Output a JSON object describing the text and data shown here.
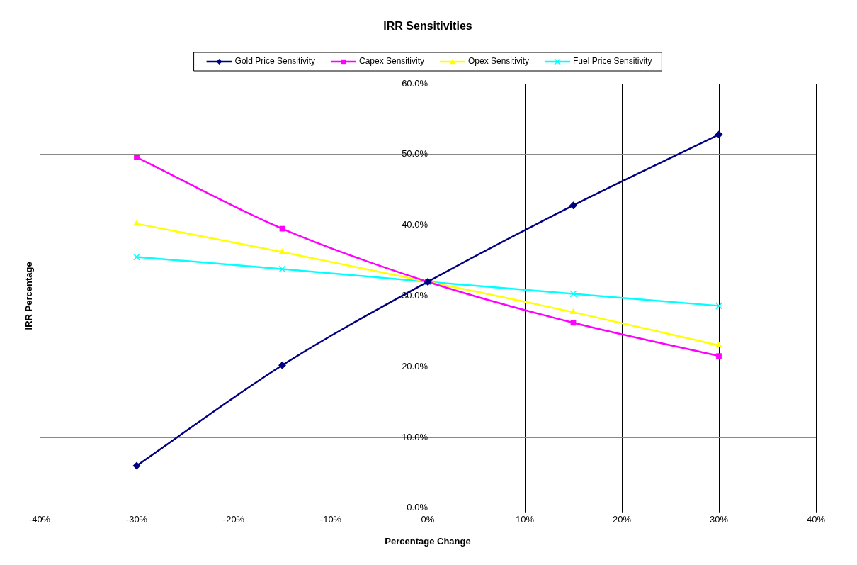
{
  "chart_data": {
    "type": "line",
    "title": "IRR Sensitivities",
    "xlabel": "Percentage Change",
    "ylabel": "IRR Percentage",
    "x": [
      -30,
      -15,
      0,
      15,
      30
    ],
    "series": [
      {
        "name": "Gold Price Sensitivity",
        "color": "#000080",
        "marker": "diamond",
        "values": [
          6.0,
          20.2,
          32.0,
          42.8,
          52.8
        ]
      },
      {
        "name": "Capex Sensitivity",
        "color": "#ff00ff",
        "marker": "square",
        "values": [
          49.6,
          39.5,
          32.0,
          26.2,
          21.5
        ]
      },
      {
        "name": "Opex Sensitivity",
        "color": "#ffff00",
        "marker": "triangle",
        "values": [
          40.2,
          36.2,
          32.0,
          27.7,
          23.0
        ]
      },
      {
        "name": "Fuel Price Sensitivity",
        "color": "#00ffff",
        "marker": "cross",
        "values": [
          35.5,
          33.8,
          32.0,
          30.3,
          28.6
        ]
      }
    ],
    "xlim": [
      -40,
      40
    ],
    "xticks": [
      {
        "value": -40,
        "label": "-40%"
      },
      {
        "value": -30,
        "label": "-30%"
      },
      {
        "value": -20,
        "label": "-20%"
      },
      {
        "value": -10,
        "label": "-10%"
      },
      {
        "value": 0,
        "label": "0%"
      },
      {
        "value": 10,
        "label": "10%"
      },
      {
        "value": 20,
        "label": "20%"
      },
      {
        "value": 30,
        "label": "30%"
      },
      {
        "value": 40,
        "label": "40%"
      }
    ],
    "ylim": [
      0,
      60
    ],
    "yticks": [
      {
        "value": 0,
        "label": "0.0%"
      },
      {
        "value": 10,
        "label": "10.0%"
      },
      {
        "value": 20,
        "label": "20.0%"
      },
      {
        "value": 30,
        "label": "30.0%"
      },
      {
        "value": 40,
        "label": "40.0%"
      },
      {
        "value": 50,
        "label": "50.0%"
      },
      {
        "value": 60,
        "label": "60.0%"
      }
    ],
    "grid": true,
    "legend": "top",
    "line_style": "solid"
  }
}
